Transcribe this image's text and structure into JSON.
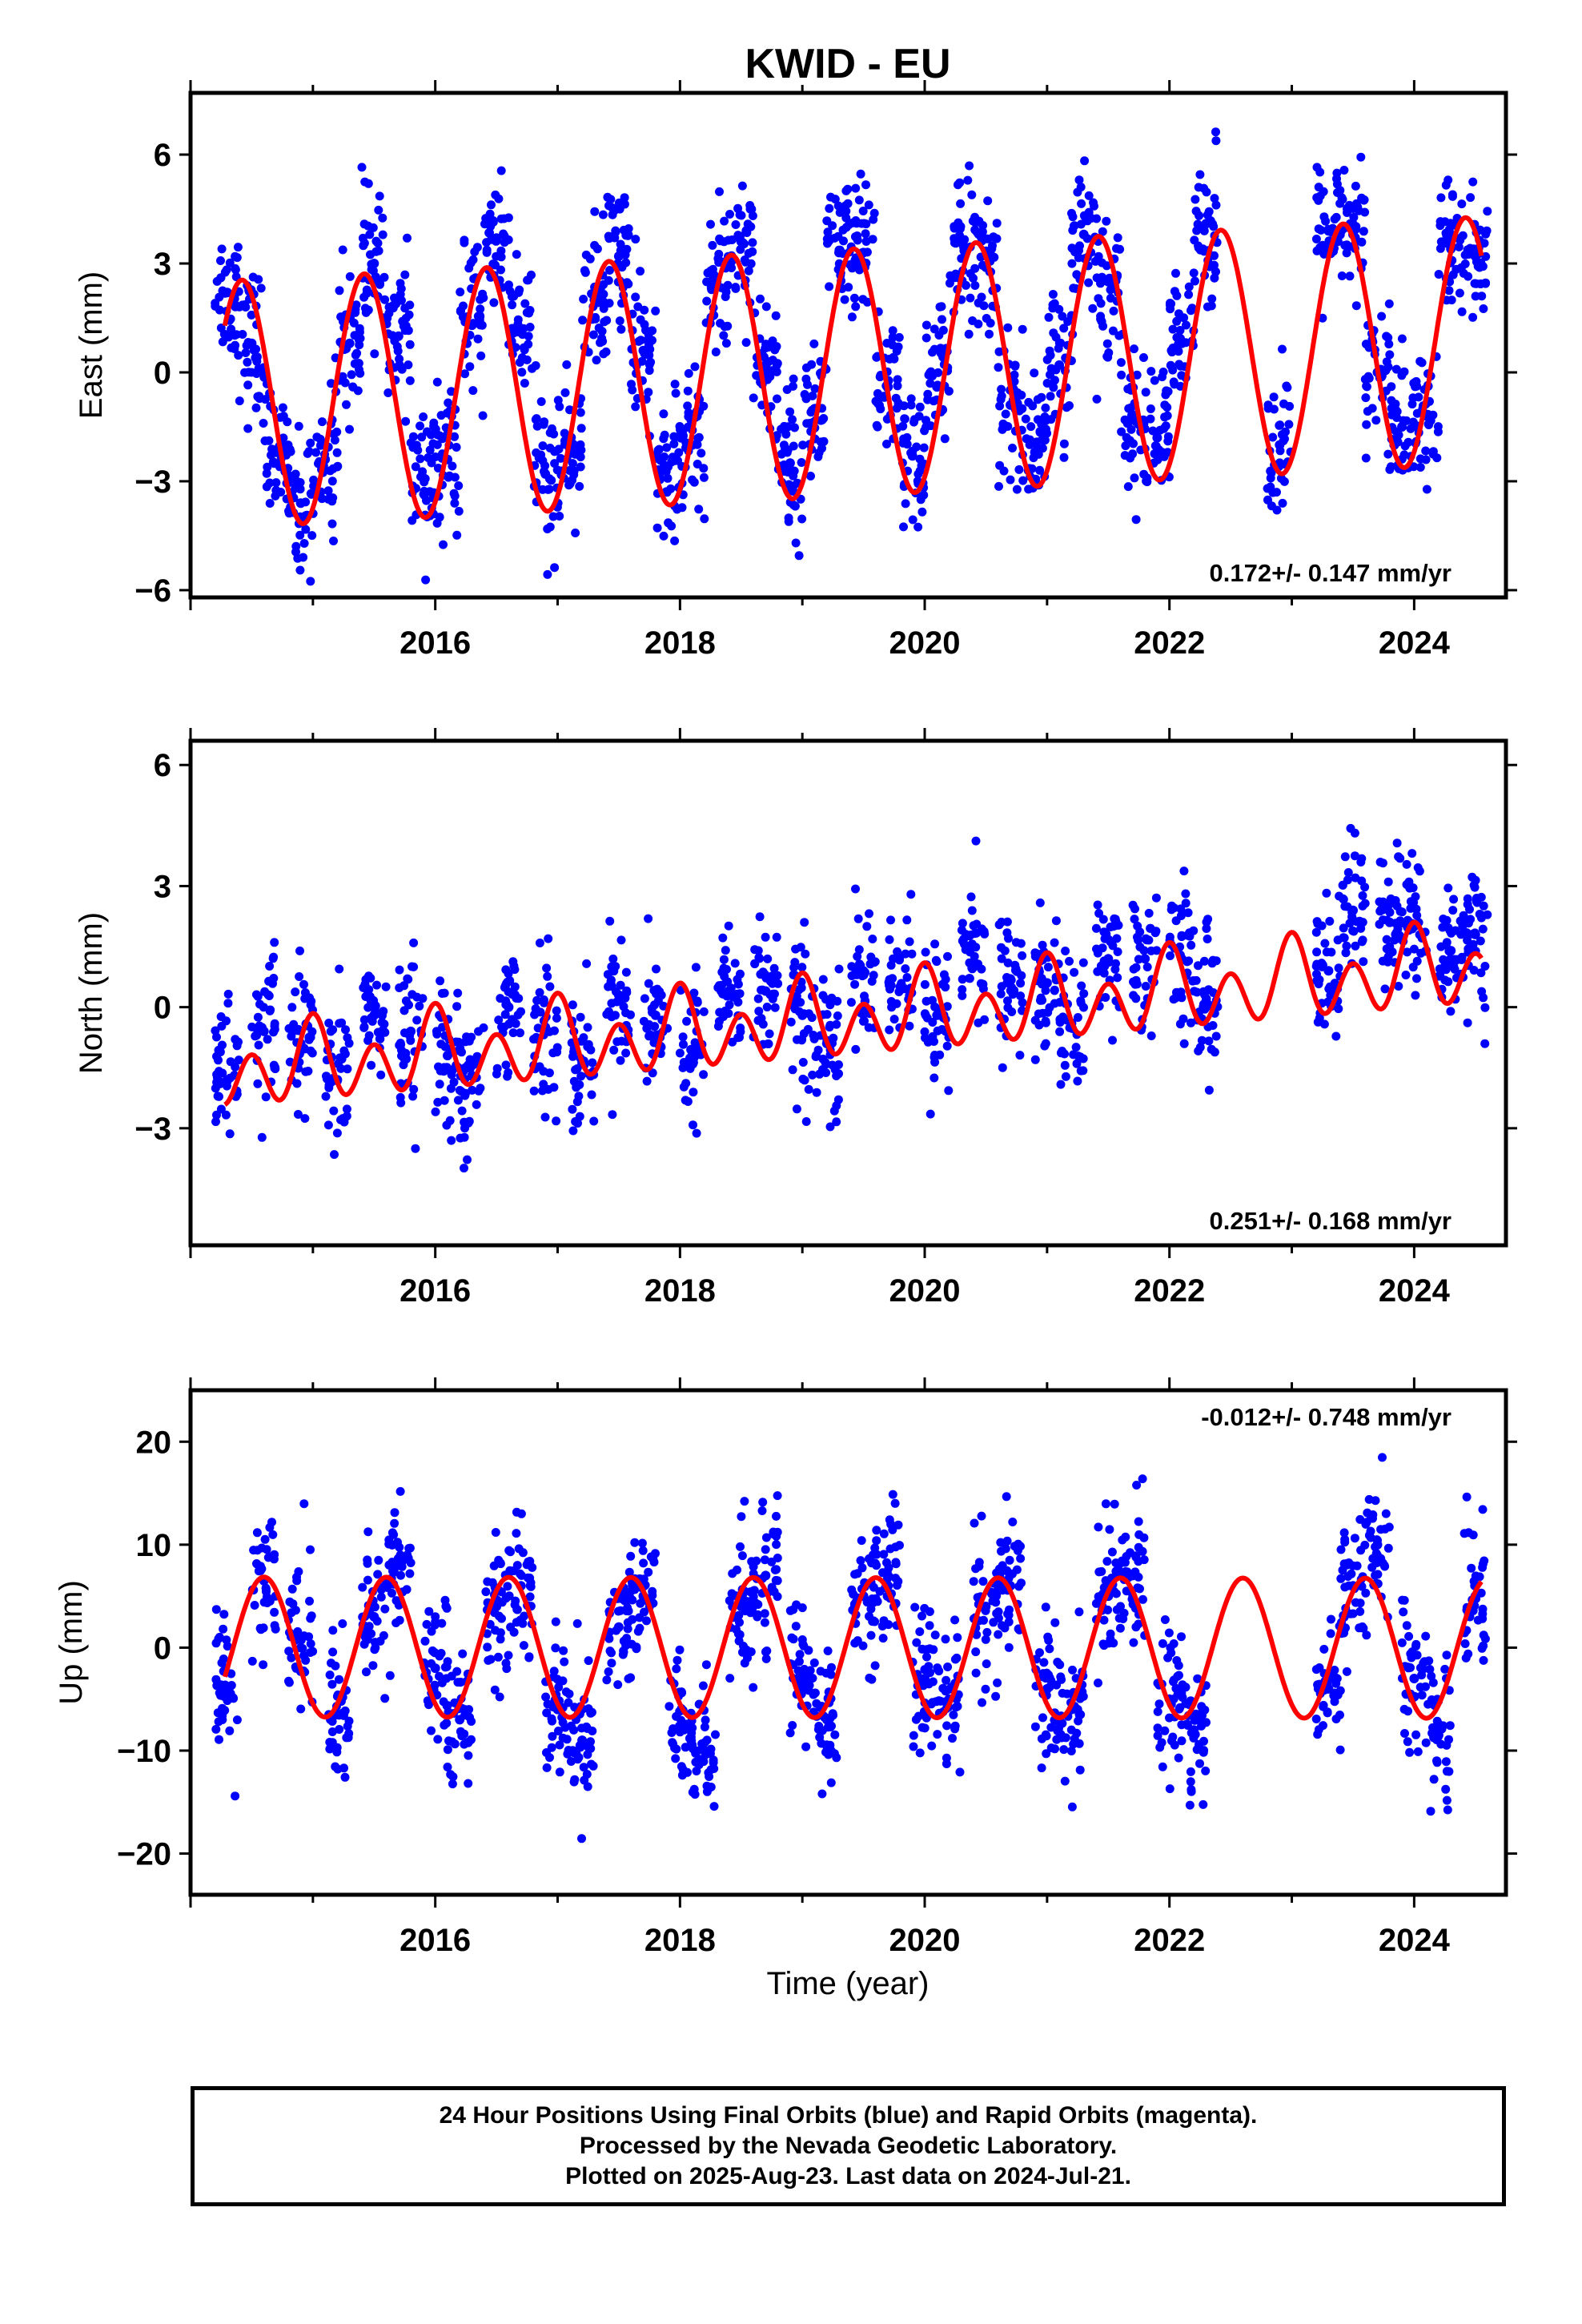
{
  "title": "KWID - EU",
  "x_label": "Time (year)",
  "footer": {
    "line1": "24 Hour Positions Using Final Orbits (blue) and Rapid Orbits (magenta).",
    "line2": "Processed by the Nevada Geodetic Laboratory.",
    "line3": "Plotted on 2025-Aug-23. Last data on 2024-Jul-21."
  },
  "colors": {
    "points": "#0000ff",
    "fit": "#ff0000",
    "frame": "#000000"
  },
  "chart_data": [
    {
      "type": "scatter",
      "ylabel": "East (mm)",
      "rate_text": "0.172+/- 0.147 mm/yr",
      "xlim": [
        2014.0,
        2024.75
      ],
      "ylim": [
        -6.2,
        7.7
      ],
      "x_ticks": [
        2016,
        2018,
        2020,
        2022,
        2024
      ],
      "y_ticks": [
        6,
        3,
        0,
        -3,
        -6
      ],
      "y_tick_labels": [
        "6",
        "3",
        "0",
        "−3",
        "−6"
      ],
      "series": [
        {
          "kind": "points",
          "sampled_observations": [
            [
              2014.3,
              2.2
            ],
            [
              2014.5,
              0.8
            ],
            [
              2014.7,
              -2.2
            ],
            [
              2014.9,
              -3.6
            ],
            [
              2015.1,
              -2.4
            ],
            [
              2015.3,
              0.8
            ],
            [
              2015.5,
              3.0
            ],
            [
              2015.7,
              1.0
            ],
            [
              2015.9,
              -2.9
            ],
            [
              2016.1,
              -2.4
            ],
            [
              2016.3,
              1.3
            ],
            [
              2016.5,
              3.7
            ],
            [
              2016.7,
              1.2
            ],
            [
              2016.9,
              -2.8
            ],
            [
              2017.1,
              -2.1
            ],
            [
              2017.3,
              2.0
            ],
            [
              2017.5,
              3.2
            ],
            [
              2017.7,
              0.6
            ],
            [
              2017.9,
              -2.6
            ],
            [
              2018.1,
              -2.0
            ],
            [
              2018.3,
              2.5
            ],
            [
              2018.5,
              3.6
            ],
            [
              2018.7,
              0.2
            ],
            [
              2018.9,
              -2.5
            ],
            [
              2019.1,
              -1.0
            ],
            [
              2019.3,
              3.3
            ],
            [
              2019.5,
              3.3
            ],
            [
              2019.7,
              -0.4
            ],
            [
              2019.9,
              -2.3
            ],
            [
              2020.1,
              -0.4
            ],
            [
              2020.3,
              3.6
            ],
            [
              2020.5,
              2.9
            ],
            [
              2020.7,
              -0.9
            ],
            [
              2020.9,
              -2.2
            ],
            [
              2021.1,
              0.2
            ],
            [
              2021.3,
              3.8
            ],
            [
              2021.5,
              2.5
            ],
            [
              2021.7,
              -1.2
            ],
            [
              2021.9,
              -1.8
            ],
            [
              2022.1,
              0.8
            ],
            [
              2022.3,
              4.1
            ],
            [
              2022.9,
              -2.0
            ],
            [
              2023.3,
              3.9
            ],
            [
              2023.5,
              3.8
            ],
            [
              2023.7,
              0.0
            ],
            [
              2023.9,
              -1.5
            ],
            [
              2024.1,
              -1.2
            ],
            [
              2024.3,
              3.4
            ],
            [
              2024.5,
              3.2
            ]
          ]
        },
        {
          "kind": "fit_model",
          "rate_mm_per_yr": 0.172,
          "annual_amplitude_mm": 3.4,
          "annual_peak_year_fraction": 0.42
        }
      ]
    },
    {
      "type": "scatter",
      "ylabel": "North (mm)",
      "rate_text": "0.251+/- 0.168 mm/yr",
      "xlim": [
        2014.0,
        2024.75
      ],
      "ylim": [
        -5.9,
        6.6
      ],
      "x_ticks": [
        2016,
        2018,
        2020,
        2022,
        2024
      ],
      "y_ticks": [
        6,
        3,
        0,
        -3
      ],
      "y_tick_labels": [
        "6",
        "3",
        "0",
        "−3"
      ],
      "series": [
        {
          "kind": "points",
          "sampled_observations": [
            [
              2014.3,
              -1.8
            ],
            [
              2014.6,
              -0.6
            ],
            [
              2014.9,
              -0.9
            ],
            [
              2015.2,
              -1.8
            ],
            [
              2015.5,
              -0.2
            ],
            [
              2015.8,
              -0.6
            ],
            [
              2016.1,
              -1.2
            ],
            [
              2016.3,
              -1.7
            ],
            [
              2016.6,
              0.0
            ],
            [
              2016.9,
              -0.5
            ],
            [
              2017.2,
              -1.4
            ],
            [
              2017.5,
              0.3
            ],
            [
              2017.8,
              -0.2
            ],
            [
              2018.1,
              -1.1
            ],
            [
              2018.4,
              0.4
            ],
            [
              2018.7,
              0.4
            ],
            [
              2019.0,
              -0.2
            ],
            [
              2019.2,
              -0.9
            ],
            [
              2019.5,
              0.8
            ],
            [
              2019.8,
              0.5
            ],
            [
              2020.1,
              -0.2
            ],
            [
              2020.4,
              1.0
            ],
            [
              2020.7,
              0.7
            ],
            [
              2021.0,
              0.6
            ],
            [
              2021.2,
              -0.4
            ],
            [
              2021.5,
              1.2
            ],
            [
              2021.8,
              1.2
            ],
            [
              2022.1,
              1.2
            ],
            [
              2022.3,
              0.1
            ],
            [
              2023.3,
              0.9
            ],
            [
              2023.5,
              2.4
            ],
            [
              2023.8,
              2.1
            ],
            [
              2024.0,
              2.0
            ],
            [
              2024.3,
              1.4
            ],
            [
              2024.5,
              1.8
            ]
          ]
        },
        {
          "kind": "fit_model",
          "rate_mm_per_yr": 0.251,
          "annual_amplitude_mm": 0.45,
          "semiannual_amplitude_mm": 0.8
        }
      ]
    },
    {
      "type": "scatter",
      "ylabel": "Up (mm)",
      "rate_text": "-0.012+/- 0.748 mm/yr",
      "xlim": [
        2014.0,
        2024.75
      ],
      "ylim": [
        -24,
        25
      ],
      "x_ticks": [
        2016,
        2018,
        2020,
        2022,
        2024
      ],
      "y_ticks": [
        20,
        10,
        0,
        -10,
        -20
      ],
      "y_tick_labels": [
        "20",
        "10",
        "0",
        "−10",
        "−20"
      ],
      "series": [
        {
          "kind": "points",
          "sampled_observations": [
            [
              2014.3,
              -4.0
            ],
            [
              2014.6,
              6.5
            ],
            [
              2014.9,
              1.0
            ],
            [
              2015.2,
              -6.5
            ],
            [
              2015.5,
              3.0
            ],
            [
              2015.7,
              8.0
            ],
            [
              2016.0,
              -2.0
            ],
            [
              2016.2,
              -7.0
            ],
            [
              2016.5,
              4.0
            ],
            [
              2016.7,
              6.0
            ],
            [
              2017.0,
              -6.0
            ],
            [
              2017.2,
              -9.0
            ],
            [
              2017.5,
              2.0
            ],
            [
              2017.7,
              5.0
            ],
            [
              2018.0,
              -8.0
            ],
            [
              2018.2,
              -10.0
            ],
            [
              2018.5,
              4.0
            ],
            [
              2018.7,
              7.0
            ],
            [
              2019.0,
              -3.0
            ],
            [
              2019.2,
              -7.0
            ],
            [
              2019.5,
              5.0
            ],
            [
              2019.7,
              6.0
            ],
            [
              2020.0,
              -3.0
            ],
            [
              2020.2,
              -5.0
            ],
            [
              2020.5,
              4.0
            ],
            [
              2020.7,
              6.0
            ],
            [
              2021.0,
              -4.0
            ],
            [
              2021.2,
              -6.0
            ],
            [
              2021.5,
              5.0
            ],
            [
              2021.7,
              7.0
            ],
            [
              2022.0,
              -5.0
            ],
            [
              2022.2,
              -8.0
            ],
            [
              2023.3,
              -4.0
            ],
            [
              2023.5,
              6.0
            ],
            [
              2023.7,
              10.0
            ],
            [
              2024.0,
              -3.0
            ],
            [
              2024.2,
              -8.0
            ],
            [
              2024.5,
              5.0
            ]
          ]
        },
        {
          "kind": "fit_model",
          "rate_mm_per_yr": -0.012,
          "annual_amplitude_mm": 6.8,
          "annual_peak_year_fraction": 0.6
        }
      ]
    }
  ]
}
